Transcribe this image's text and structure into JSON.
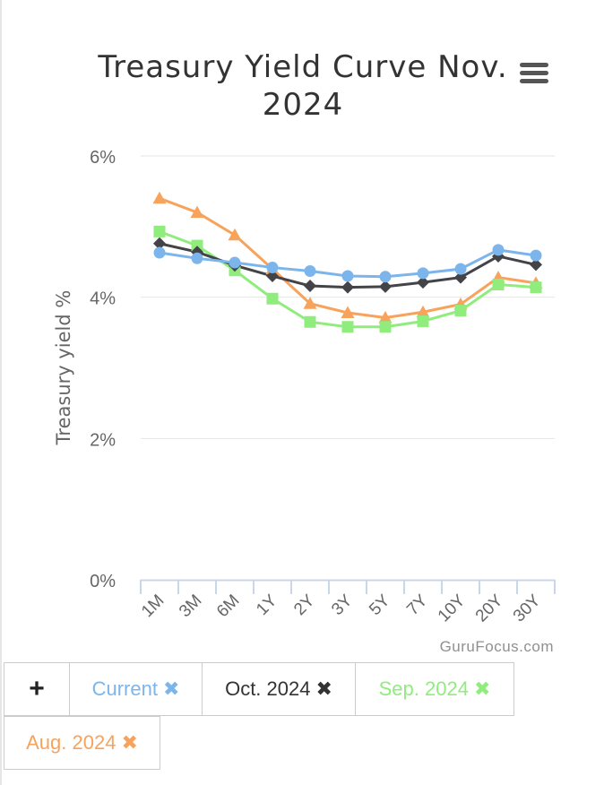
{
  "chart_data": {
    "type": "line",
    "title": "Treasury Yield Curve Nov. 2024",
    "xlabel": "",
    "ylabel": "Treasury yield %",
    "categories": [
      "1M",
      "3M",
      "6M",
      "1Y",
      "2Y",
      "3Y",
      "5Y",
      "7Y",
      "10Y",
      "20Y",
      "30Y"
    ],
    "ylim": [
      0,
      6
    ],
    "yticks": [
      0,
      2,
      4,
      6
    ],
    "ytick_labels": [
      "0%",
      "2%",
      "4%",
      "6%"
    ],
    "grid": true,
    "series": [
      {
        "name": "Current",
        "color": "#7cb5ec",
        "marker": "circle",
        "values": [
          4.63,
          4.55,
          4.49,
          4.42,
          4.37,
          4.3,
          4.29,
          4.34,
          4.4,
          4.67,
          4.59
        ]
      },
      {
        "name": "Oct. 2024",
        "color": "#434348",
        "marker": "diamond",
        "values": [
          4.76,
          4.64,
          4.45,
          4.3,
          4.16,
          4.14,
          4.15,
          4.21,
          4.28,
          4.58,
          4.46
        ]
      },
      {
        "name": "Sep. 2024",
        "color": "#90ed7d",
        "marker": "square",
        "values": [
          4.93,
          4.73,
          4.38,
          3.98,
          3.65,
          3.58,
          3.58,
          3.66,
          3.81,
          4.18,
          4.14
        ]
      },
      {
        "name": "Aug. 2024",
        "color": "#f7a35c",
        "marker": "triangle",
        "values": [
          5.4,
          5.2,
          4.88,
          4.4,
          3.91,
          3.78,
          3.71,
          3.79,
          3.9,
          4.28,
          4.2
        ]
      }
    ]
  },
  "menu": {
    "icon": "hamburger-menu-icon"
  },
  "credit": "GuruFocus.com",
  "legend": {
    "add_label": "+",
    "remove_symbol": "✖",
    "items": [
      {
        "label": "Current",
        "color": "#7cb5ec"
      },
      {
        "label": "Oct. 2024",
        "color": "#333333"
      },
      {
        "label": "Sep. 2024",
        "color": "#90ed7d"
      },
      {
        "label": "Aug. 2024",
        "color": "#f7a35c"
      }
    ]
  }
}
